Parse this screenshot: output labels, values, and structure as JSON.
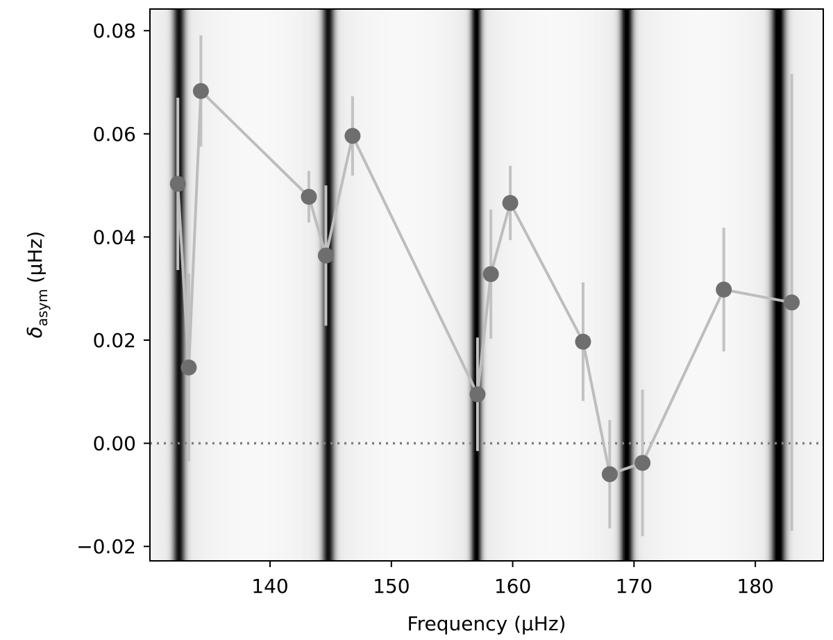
{
  "chart_data": {
    "type": "scatter",
    "xlabel": "Frequency (μHz)",
    "ylabel_main": "δ",
    "ylabel_sub": "asym",
    "ylabel_units": "(μHz)",
    "xlim": [
      130.1,
      185.6
    ],
    "ylim": [
      -0.0228,
      0.0842
    ],
    "x_ticks": [
      140,
      150,
      160,
      170,
      180
    ],
    "x_tick_labels": [
      "140",
      "150",
      "160",
      "170",
      "180"
    ],
    "y_ticks": [
      -0.02,
      0.0,
      0.02,
      0.04,
      0.06,
      0.08
    ],
    "y_tick_labels": [
      "−0.02",
      "0.00",
      "0.02",
      "0.04",
      "0.06",
      "0.08"
    ],
    "background_dark_bands": [
      {
        "center": 132.5,
        "width": 0.35,
        "strength": 0.85
      },
      {
        "center": 144.8,
        "width": 0.35,
        "strength": 0.85
      },
      {
        "center": 157.0,
        "width": 0.3,
        "strength": 0.95
      },
      {
        "center": 169.4,
        "width": 0.35,
        "strength": 1.0
      },
      {
        "center": 181.9,
        "width": 0.4,
        "strength": 1.0
      }
    ],
    "zero_line": 0.0,
    "grid": false,
    "series": [
      {
        "points": [
          {
            "x": 132.4,
            "y": 0.0503,
            "err": 0.0167
          },
          {
            "x": 133.3,
            "y": 0.0147,
            "err": 0.0182
          },
          {
            "x": 134.3,
            "y": 0.0683,
            "err": 0.0108
          },
          {
            "x": 143.2,
            "y": 0.0478,
            "err": 0.005
          },
          {
            "x": 144.6,
            "y": 0.0364,
            "err": 0.0136
          },
          {
            "x": 146.8,
            "y": 0.0596,
            "err": 0.0077
          },
          {
            "x": 157.1,
            "y": 0.0095,
            "err": 0.011
          },
          {
            "x": 158.2,
            "y": 0.0328,
            "err": 0.0125
          },
          {
            "x": 159.8,
            "y": 0.0466,
            "err": 0.0072
          },
          {
            "x": 165.8,
            "y": 0.0197,
            "err": 0.0115
          },
          {
            "x": 168.0,
            "y": -0.006,
            "err": 0.0105
          },
          {
            "x": 170.7,
            "y": -0.0038,
            "err": 0.0142
          },
          {
            "x": 177.4,
            "y": 0.0298,
            "err": 0.012
          },
          {
            "x": 183.0,
            "y": 0.0273,
            "err": 0.0443
          }
        ],
        "line_color": "#bdbdbd",
        "errbar_color": "#c2c2c2",
        "marker_color": "#6e6e6e"
      }
    ],
    "zero_line_color": "#7f7f7f"
  }
}
